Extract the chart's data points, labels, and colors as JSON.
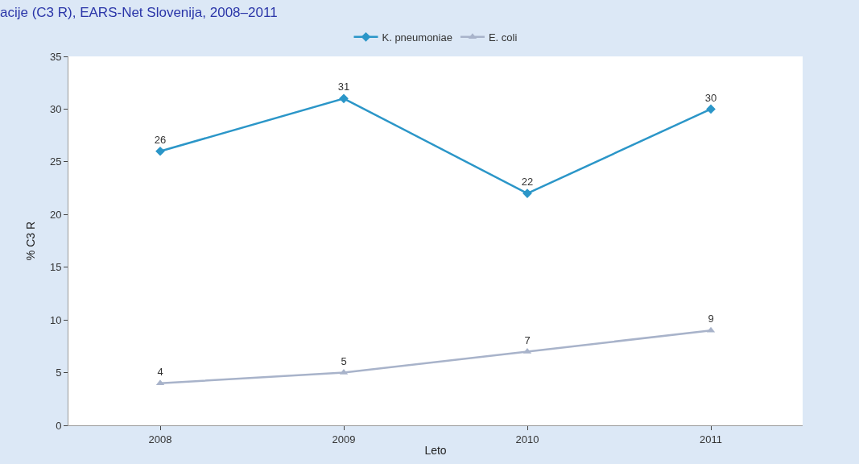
{
  "chart_data": {
    "type": "line",
    "title": "acije (C3 R), EARS-Net Slovenija, 2008–2011",
    "xlabel": "Leto",
    "ylabel": "% C3 R",
    "categories": [
      "2008",
      "2009",
      "2010",
      "2011"
    ],
    "series": [
      {
        "name": "K. pneumoniae",
        "color": "#2b96c8",
        "values": [
          26,
          31,
          22,
          30
        ],
        "marker": "diamond"
      },
      {
        "name": "E. coli",
        "color": "#a8b3ca",
        "values": [
          4,
          5,
          7,
          9
        ],
        "marker": "triangle"
      }
    ],
    "ylim": [
      0,
      35
    ],
    "yticks": [
      0,
      5,
      10,
      15,
      20,
      25,
      30,
      35
    ],
    "legend": "top",
    "data_labels": true,
    "line_style": "solid"
  }
}
